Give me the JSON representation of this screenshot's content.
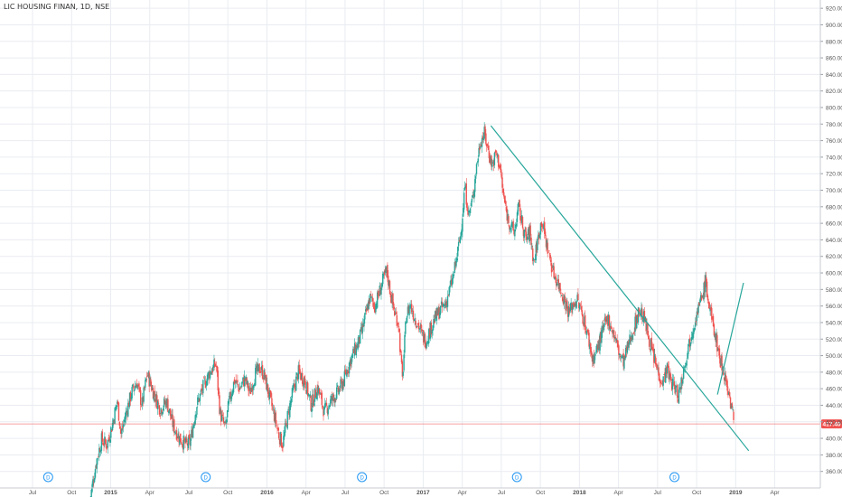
{
  "chart_data": {
    "type": "candlestick",
    "title": "LIC HOUSING FINAN, 1D, NSE",
    "price_axis": {
      "ylim": [
        340,
        930
      ],
      "ticks": [
        "920.00",
        "900.00",
        "880.00",
        "860.00",
        "840.00",
        "820.00",
        "800.00",
        "780.00",
        "760.00",
        "740.00",
        "720.00",
        "700.00",
        "680.00",
        "660.00",
        "640.00",
        "620.00",
        "600.00",
        "580.00",
        "560.00",
        "540.00",
        "520.00",
        "500.00",
        "480.00",
        "460.00",
        "440.00",
        "420.00",
        "400.00",
        "380.00",
        "360.00"
      ],
      "tick_values": [
        920,
        900,
        880,
        860,
        840,
        820,
        800,
        780,
        760,
        740,
        720,
        700,
        680,
        660,
        640,
        620,
        600,
        580,
        560,
        540,
        520,
        500,
        480,
        460,
        440,
        420,
        400,
        380,
        360
      ]
    },
    "time_axis": {
      "labels": [
        "Jul",
        "Oct",
        "2015",
        "Apr",
        "Jul",
        "Oct",
        "2016",
        "Apr",
        "Jul",
        "Oct",
        "2017",
        "Apr",
        "Jul",
        "Oct",
        "2018",
        "Apr",
        "Jul",
        "Oct",
        "2019",
        "Apr"
      ],
      "month_index": [
        6,
        9,
        12,
        15,
        18,
        21,
        24,
        27,
        30,
        33,
        36,
        39,
        42,
        45,
        48,
        51,
        54,
        57,
        60,
        63
      ],
      "bold": [
        false,
        false,
        true,
        false,
        false,
        false,
        true,
        false,
        false,
        false,
        true,
        false,
        false,
        false,
        true,
        false,
        false,
        false,
        true,
        false
      ],
      "range_month_index": [
        3.5,
        66.5
      ]
    },
    "last_price": {
      "label": "417.40",
      "value": 417.4
    },
    "price_path": [
      [
        10.4,
        325
      ],
      [
        10.9,
        372
      ],
      [
        11.3,
        398
      ],
      [
        11.7,
        392
      ],
      [
        12.1,
        415
      ],
      [
        12.5,
        445
      ],
      [
        12.8,
        405
      ],
      [
        13.2,
        432
      ],
      [
        13.6,
        455
      ],
      [
        14.0,
        468
      ],
      [
        14.4,
        440
      ],
      [
        14.8,
        478
      ],
      [
        15.3,
        455
      ],
      [
        15.8,
        435
      ],
      [
        16.3,
        445
      ],
      [
        16.8,
        415
      ],
      [
        17.3,
        400
      ],
      [
        17.8,
        392
      ],
      [
        18.1,
        395
      ],
      [
        18.6,
        440
      ],
      [
        19.1,
        462
      ],
      [
        19.6,
        480
      ],
      [
        20.1,
        490
      ],
      [
        20.4,
        430
      ],
      [
        20.8,
        412
      ],
      [
        21.1,
        445
      ],
      [
        21.5,
        470
      ],
      [
        21.9,
        460
      ],
      [
        22.3,
        472
      ],
      [
        22.7,
        455
      ],
      [
        23.1,
        478
      ],
      [
        23.5,
        485
      ],
      [
        23.8,
        475
      ],
      [
        24.2,
        450
      ],
      [
        24.6,
        425
      ],
      [
        24.9,
        405
      ],
      [
        25.2,
        392
      ],
      [
        25.5,
        420
      ],
      [
        25.9,
        450
      ],
      [
        26.4,
        480
      ],
      [
        26.9,
        470
      ],
      [
        27.4,
        440
      ],
      [
        27.9,
        462
      ],
      [
        28.4,
        432
      ],
      [
        28.9,
        445
      ],
      [
        29.4,
        455
      ],
      [
        29.9,
        470
      ],
      [
        30.3,
        490
      ],
      [
        30.7,
        505
      ],
      [
        31.0,
        515
      ],
      [
        31.3,
        530
      ],
      [
        31.6,
        550
      ],
      [
        31.9,
        570
      ],
      [
        32.3,
        560
      ],
      [
        32.6,
        575
      ],
      [
        32.9,
        590
      ],
      [
        33.2,
        602
      ],
      [
        33.5,
        575
      ],
      [
        33.8,
        552
      ],
      [
        34.1,
        540
      ],
      [
        34.4,
        470
      ],
      [
        34.7,
        548
      ],
      [
        35.0,
        562
      ],
      [
        35.3,
        548
      ],
      [
        35.6,
        538
      ],
      [
        35.9,
        525
      ],
      [
        36.2,
        518
      ],
      [
        36.5,
        530
      ],
      [
        36.9,
        545
      ],
      [
        37.3,
        555
      ],
      [
        37.7,
        562
      ],
      [
        38.0,
        578
      ],
      [
        38.3,
        595
      ],
      [
        38.6,
        620
      ],
      [
        38.9,
        650
      ],
      [
        39.2,
        705
      ],
      [
        39.5,
        670
      ],
      [
        39.8,
        690
      ],
      [
        40.1,
        730
      ],
      [
        40.4,
        760
      ],
      [
        40.7,
        768
      ],
      [
        41.0,
        748
      ],
      [
        41.3,
        730
      ],
      [
        41.6,
        745
      ],
      [
        41.9,
        728
      ],
      [
        42.1,
        700
      ],
      [
        42.4,
        672
      ],
      [
        42.7,
        658
      ],
      [
        43.0,
        648
      ],
      [
        43.3,
        680
      ],
      [
        43.6,
        660
      ],
      [
        43.9,
        640
      ],
      [
        44.2,
        650
      ],
      [
        44.5,
        612
      ],
      [
        44.8,
        640
      ],
      [
        45.1,
        665
      ],
      [
        45.4,
        640
      ],
      [
        45.7,
        620
      ],
      [
        46.0,
        600
      ],
      [
        46.3,
        590
      ],
      [
        46.6,
        578
      ],
      [
        46.9,
        565
      ],
      [
        47.2,
        552
      ],
      [
        47.5,
        562
      ],
      [
        47.8,
        568
      ],
      [
        48.1,
        555
      ],
      [
        48.4,
        540
      ],
      [
        48.7,
        520
      ],
      [
        49.0,
        495
      ],
      [
        49.3,
        505
      ],
      [
        49.6,
        520
      ],
      [
        49.9,
        535
      ],
      [
        50.2,
        545
      ],
      [
        50.5,
        532
      ],
      [
        50.8,
        518
      ],
      [
        51.1,
        500
      ],
      [
        51.4,
        492
      ],
      [
        51.7,
        510
      ],
      [
        52.0,
        525
      ],
      [
        52.3,
        540
      ],
      [
        52.6,
        555
      ],
      [
        52.9,
        548
      ],
      [
        53.2,
        530
      ],
      [
        53.5,
        510
      ],
      [
        53.8,
        492
      ],
      [
        54.1,
        478
      ],
      [
        54.4,
        468
      ],
      [
        54.7,
        485
      ],
      [
        55.0,
        470
      ],
      [
        55.3,
        462
      ],
      [
        55.6,
        452
      ],
      [
        55.9,
        475
      ],
      [
        56.2,
        500
      ],
      [
        56.5,
        520
      ],
      [
        56.8,
        540
      ],
      [
        57.1,
        555
      ],
      [
        57.4,
        570
      ],
      [
        57.7,
        590
      ],
      [
        57.9,
        565
      ],
      [
        58.2,
        540
      ],
      [
        58.5,
        520
      ],
      [
        58.8,
        495
      ],
      [
        59.1,
        480
      ],
      [
        59.4,
        460
      ],
      [
        59.7,
        435
      ],
      [
        59.9,
        417
      ]
    ],
    "trendlines": [
      {
        "from": [
          41.2,
          778
        ],
        "to": [
          61.0,
          385
        ]
      },
      {
        "from": [
          58.6,
          453
        ],
        "to": [
          60.6,
          588
        ]
      }
    ],
    "dividend_markers": [
      {
        "label": "D",
        "month_index": 7.2
      },
      {
        "label": "D",
        "month_index": 19.3
      },
      {
        "label": "D",
        "month_index": 31.3
      },
      {
        "label": "D",
        "month_index": 43.2
      },
      {
        "label": "D",
        "month_index": 55.3
      }
    ],
    "colors": {
      "up": "#26a69a",
      "down": "#ef5350",
      "trendline": "#26a69a",
      "last_price_line": "#ef5350",
      "last_price_badge": "#ef5350",
      "marker": "#2196f3",
      "grid": "#e9ecf1"
    }
  }
}
